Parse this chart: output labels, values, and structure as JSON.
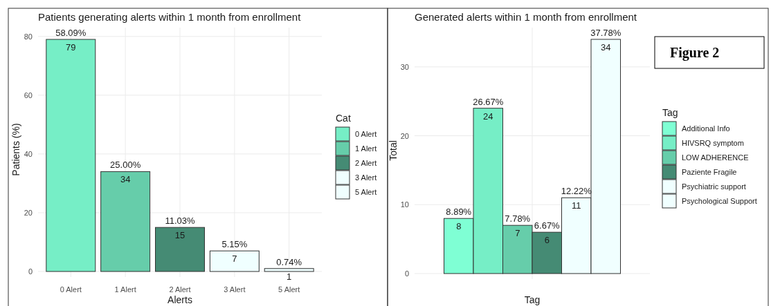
{
  "chart_data": [
    {
      "type": "bar",
      "title": "Patients generating alerts within 1 month from enrollment",
      "xlabel": "Alerts",
      "ylabel": "Patients (%)",
      "legend_title": "Cat",
      "legend": "right",
      "grid": true,
      "categories": [
        "0 Alert",
        "1 Alert",
        "2 Alert",
        "3 Alert",
        "5 Alert"
      ],
      "stacked": true,
      "series": [
        {
          "name": "0 Alert",
          "color": "#76eec6",
          "values": [
            79,
            null,
            null,
            null,
            null
          ]
        },
        {
          "name": "1 Alert",
          "color": "#66cdaa",
          "values": [
            null,
            34,
            null,
            null,
            null
          ]
        },
        {
          "name": "2 Alert",
          "color": "#458b74",
          "values": [
            null,
            null,
            15,
            null,
            null
          ]
        },
        {
          "name": "3 Alert",
          "color": "#f0ffff",
          "values": [
            null,
            null,
            null,
            7,
            null
          ]
        },
        {
          "name": "5 Alert",
          "color": "#f0ffff",
          "values": [
            null,
            null,
            null,
            null,
            1
          ]
        }
      ],
      "data_labels": true,
      "ylim": [
        0,
        83
      ],
      "yticks": [
        0,
        20,
        40,
        60,
        80
      ],
      "annotations": [
        {
          "text": "58.09%",
          "x": "0 Alert",
          "y": 79
        },
        {
          "text": "25.00%",
          "x": "1 Alert",
          "y": 34
        },
        {
          "text": "11.03%",
          "x": "2 Alert",
          "y": 15
        },
        {
          "text": "5.15%",
          "x": "3 Alert",
          "y": 7
        },
        {
          "text": "0.74%",
          "x": "5 Alert",
          "y": 1
        }
      ]
    },
    {
      "type": "bar",
      "title": "Generated alerts within 1 month from enrollment",
      "xlabel": "Tag",
      "ylabel": "Total",
      "legend_title": "Tag",
      "legend": "right",
      "grid": true,
      "categories": [
        null
      ],
      "series": [
        {
          "name": "Additional Info",
          "color": "#7fffd4",
          "values": [
            8
          ]
        },
        {
          "name": "HIVSRQ symptom",
          "color": "#76eec6",
          "values": [
            24
          ]
        },
        {
          "name": "LOW ADHERENCE",
          "color": "#66cdaa",
          "values": [
            7
          ]
        },
        {
          "name": "Paziente Fragile",
          "color": "#458b74",
          "values": [
            6
          ]
        },
        {
          "name": "Psychiatric support",
          "color": "#f0ffff",
          "values": [
            11
          ]
        },
        {
          "name": "Psychological Support",
          "color": "#f0ffff",
          "values": [
            34
          ]
        }
      ],
      "data_labels": true,
      "ylim": [
        0,
        35.7
      ],
      "yticks": [
        0,
        10,
        20,
        30
      ],
      "annotations": [
        {
          "text": "8.89%",
          "y": 8
        },
        {
          "text": "26.67%",
          "y": 24
        },
        {
          "text": "7.78%",
          "y": 7
        },
        {
          "text": "6.67%",
          "y": 6
        },
        {
          "text": "12.22%",
          "y": 11
        },
        {
          "text": "37.78%",
          "y": 34
        },
        "Figure 2"
      ]
    }
  ]
}
